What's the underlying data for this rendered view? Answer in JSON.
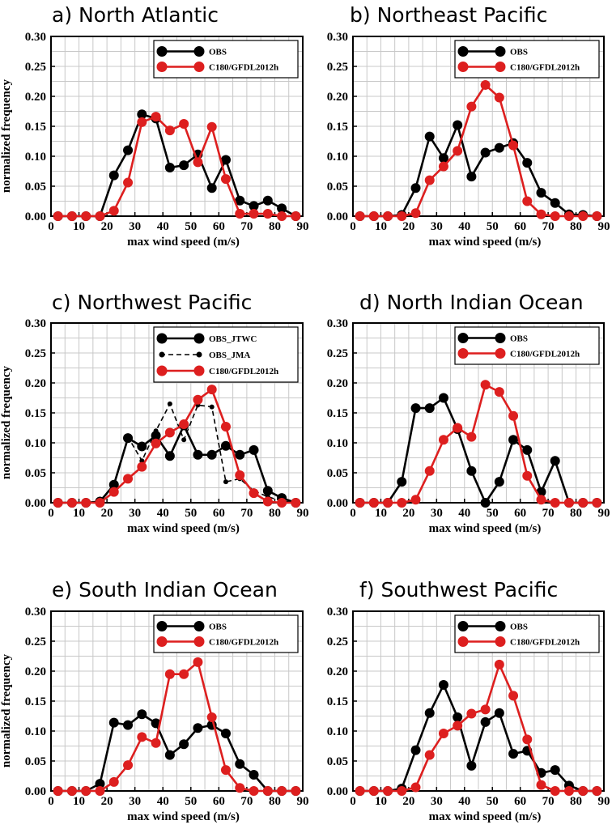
{
  "chart_data": [
    {
      "type": "line",
      "title": "a)   North Atlantic",
      "xlabel": "max wind speed (m/s)",
      "ylabel": "normalized frequency",
      "xlim": [
        0,
        90
      ],
      "ylim": [
        0,
        0.3
      ],
      "xticks": [
        "0",
        "10",
        "20",
        "30",
        "40",
        "50",
        "60",
        "70",
        "80",
        "90"
      ],
      "yticks": [
        "0.00",
        "0.05",
        "0.10",
        "0.15",
        "0.20",
        "0.25",
        "0.30"
      ],
      "grid": true,
      "legend_position": "top-right",
      "x": [
        2.5,
        7.5,
        12.5,
        17.5,
        22.5,
        27.5,
        32.5,
        37.5,
        42.5,
        47.5,
        52.5,
        57.5,
        62.5,
        67.5,
        72.5,
        77.5,
        82.5,
        87.5
      ],
      "series": [
        {
          "name": "OBS",
          "color": "#000000",
          "style": "solid",
          "marker": "circle",
          "values": [
            0,
            0,
            0,
            0,
            0.068,
            0.11,
            0.17,
            0.163,
            0.081,
            0.085,
            0.103,
            0.047,
            0.094,
            0.026,
            0.017,
            0.026,
            0.013,
            0
          ]
        },
        {
          "name": "C180/GFDL2012h",
          "color": "#dd1f1f",
          "style": "solid",
          "marker": "circle",
          "values": [
            0,
            0,
            0,
            0,
            0.009,
            0.056,
            0.157,
            0.166,
            0.143,
            0.154,
            0.09,
            0.149,
            0.062,
            0.004,
            0.004,
            0.004,
            0,
            0
          ]
        }
      ]
    },
    {
      "type": "line",
      "title": "b) Northeast Pacific",
      "xlabel": "max wind speed (m/s)",
      "ylabel": "",
      "xlim": [
        0,
        90
      ],
      "ylim": [
        0,
        0.3
      ],
      "xticks": [
        "0",
        "10",
        "20",
        "30",
        "40",
        "50",
        "60",
        "70",
        "80",
        "90"
      ],
      "yticks": [
        "0.00",
        "0.05",
        "0.10",
        "0.15",
        "0.20",
        "0.25",
        "0.30"
      ],
      "grid": true,
      "legend_position": "top-right",
      "x": [
        2.5,
        7.5,
        12.5,
        17.5,
        22.5,
        27.5,
        32.5,
        37.5,
        42.5,
        47.5,
        52.5,
        57.5,
        62.5,
        67.5,
        72.5,
        77.5,
        82.5,
        87.5
      ],
      "series": [
        {
          "name": "OBS",
          "color": "#000000",
          "style": "solid",
          "marker": "circle",
          "values": [
            0,
            0,
            0,
            0.002,
            0.047,
            0.133,
            0.097,
            0.152,
            0.066,
            0.106,
            0.114,
            0.122,
            0.089,
            0.039,
            0.022,
            0.003,
            0.002,
            0
          ]
        },
        {
          "name": "C180/GFDL2012h",
          "color": "#dd1f1f",
          "style": "solid",
          "marker": "circle",
          "values": [
            0,
            0,
            0,
            0,
            0.005,
            0.06,
            0.083,
            0.109,
            0.183,
            0.219,
            0.198,
            0.118,
            0.025,
            0.003,
            0,
            0,
            0,
            0
          ]
        }
      ]
    },
    {
      "type": "line",
      "title": "c)  Northwest Pacific",
      "xlabel": "max wind speed (m/s)",
      "ylabel": "normalized frequency",
      "xlim": [
        0,
        90
      ],
      "ylim": [
        0,
        0.3
      ],
      "xticks": [
        "0",
        "10",
        "20",
        "30",
        "40",
        "50",
        "60",
        "70",
        "80",
        "90"
      ],
      "yticks": [
        "0.00",
        "0.05",
        "0.10",
        "0.15",
        "0.20",
        "0.25",
        "0.30"
      ],
      "grid": true,
      "legend_position": "top-right",
      "x": [
        2.5,
        7.5,
        12.5,
        17.5,
        22.5,
        27.5,
        32.5,
        37.5,
        42.5,
        47.5,
        52.5,
        57.5,
        62.5,
        67.5,
        72.5,
        77.5,
        82.5,
        87.5
      ],
      "series": [
        {
          "name": "OBS_JTWC",
          "color": "#000000",
          "style": "solid",
          "marker": "circle",
          "values": [
            0,
            0,
            0,
            0.002,
            0.03,
            0.108,
            0.094,
            0.112,
            0.078,
            0.129,
            0.08,
            0.08,
            0.095,
            0.08,
            0.088,
            0.02,
            0.008,
            0
          ]
        },
        {
          "name": "OBS_JMA",
          "color": "#000000",
          "style": "dashed",
          "marker": "small-circle",
          "values": [
            0,
            0,
            0,
            0.002,
            0.028,
            0.11,
            0.07,
            0.12,
            0.165,
            0.105,
            0.163,
            0.16,
            0.035,
            0.04,
            0.02,
            0.01,
            0.003,
            0
          ]
        },
        {
          "name": "C180/GFDL2012h",
          "color": "#dd1f1f",
          "style": "solid",
          "marker": "circle",
          "values": [
            0,
            0,
            0,
            0,
            0.018,
            0.04,
            0.06,
            0.099,
            0.117,
            0.131,
            0.172,
            0.189,
            0.127,
            0.046,
            0.016,
            0.002,
            0,
            0
          ]
        }
      ]
    },
    {
      "type": "line",
      "title": "d)   North Indian Ocean",
      "xlabel": "max wind speed (m/s)",
      "ylabel": "",
      "xlim": [
        0,
        90
      ],
      "ylim": [
        0,
        0.3
      ],
      "xticks": [
        "0",
        "10",
        "20",
        "30",
        "40",
        "50",
        "60",
        "70",
        "80",
        "90"
      ],
      "yticks": [
        "0.00",
        "0.05",
        "0.10",
        "0.15",
        "0.20",
        "0.25",
        "0.30"
      ],
      "grid": true,
      "legend_position": "top-right",
      "x": [
        2.5,
        7.5,
        12.5,
        17.5,
        22.5,
        27.5,
        32.5,
        37.5,
        42.5,
        47.5,
        52.5,
        57.5,
        62.5,
        67.5,
        72.5,
        77.5,
        82.5,
        87.5
      ],
      "series": [
        {
          "name": "OBS",
          "color": "#000000",
          "style": "solid",
          "marker": "circle",
          "values": [
            0,
            0,
            0,
            0.035,
            0.158,
            0.158,
            0.175,
            0.123,
            0.053,
            0,
            0.035,
            0.105,
            0.088,
            0.018,
            0.07,
            0,
            0,
            0
          ]
        },
        {
          "name": "C180/GFDL2012h",
          "color": "#dd1f1f",
          "style": "solid",
          "marker": "circle",
          "values": [
            0,
            0,
            0,
            0,
            0.005,
            0.053,
            0.105,
            0.125,
            0.11,
            0.197,
            0.185,
            0.145,
            0.045,
            0.005,
            0,
            0,
            0,
            0
          ]
        }
      ]
    },
    {
      "type": "line",
      "title": "e)   South Indian Ocean",
      "xlabel": "max wind speed (m/s)",
      "ylabel": "normalized frequency",
      "xlim": [
        0,
        90
      ],
      "ylim": [
        0,
        0.3
      ],
      "xticks": [
        "0",
        "10",
        "20",
        "30",
        "40",
        "50",
        "60",
        "70",
        "80",
        "90"
      ],
      "yticks": [
        "0.00",
        "0.05",
        "0.10",
        "0.15",
        "0.20",
        "0.25",
        "0.30"
      ],
      "grid": true,
      "legend_position": "top-right",
      "x": [
        2.5,
        7.5,
        12.5,
        17.5,
        22.5,
        27.5,
        32.5,
        37.5,
        42.5,
        47.5,
        52.5,
        57.5,
        62.5,
        67.5,
        72.5,
        77.5,
        82.5,
        87.5
      ],
      "series": [
        {
          "name": "OBS",
          "color": "#000000",
          "style": "solid",
          "marker": "circle",
          "values": [
            0,
            0,
            0,
            0.012,
            0.114,
            0.11,
            0.128,
            0.113,
            0.06,
            0.078,
            0.105,
            0.11,
            0.096,
            0.045,
            0.027,
            0,
            0,
            0
          ]
        },
        {
          "name": "C180/GFDL2012h",
          "color": "#dd1f1f",
          "style": "solid",
          "marker": "circle",
          "values": [
            0,
            0,
            0,
            0,
            0.015,
            0.043,
            0.09,
            0.08,
            0.195,
            0.195,
            0.215,
            0.123,
            0.035,
            0.005,
            0,
            0,
            0,
            0
          ]
        }
      ]
    },
    {
      "type": "line",
      "title": "f)  Southwest Pacific",
      "xlabel": "max wind speed (m/s)",
      "ylabel": "",
      "xlim": [
        0,
        90
      ],
      "ylim": [
        0,
        0.3
      ],
      "xticks": [
        "0",
        "10",
        "20",
        "30",
        "40",
        "50",
        "60",
        "70",
        "80",
        "90"
      ],
      "yticks": [
        "0.00",
        "0.05",
        "0.10",
        "0.15",
        "0.20",
        "0.25",
        "0.30"
      ],
      "grid": true,
      "legend_position": "top-right",
      "x": [
        2.5,
        7.5,
        12.5,
        17.5,
        22.5,
        27.5,
        32.5,
        37.5,
        42.5,
        47.5,
        52.5,
        57.5,
        62.5,
        67.5,
        72.5,
        77.5,
        82.5,
        87.5
      ],
      "series": [
        {
          "name": "OBS",
          "color": "#000000",
          "style": "solid",
          "marker": "circle",
          "values": [
            0,
            0,
            0,
            0.004,
            0.068,
            0.13,
            0.177,
            0.123,
            0.042,
            0.115,
            0.13,
            0.062,
            0.067,
            0.03,
            0.035,
            0.009,
            0,
            0
          ]
        },
        {
          "name": "C180/GFDL2012h",
          "color": "#dd1f1f",
          "style": "solid",
          "marker": "circle",
          "values": [
            0,
            0,
            0,
            0,
            0.006,
            0.06,
            0.096,
            0.109,
            0.129,
            0.136,
            0.211,
            0.159,
            0.086,
            0.01,
            0,
            0,
            0,
            0
          ]
        }
      ]
    }
  ]
}
